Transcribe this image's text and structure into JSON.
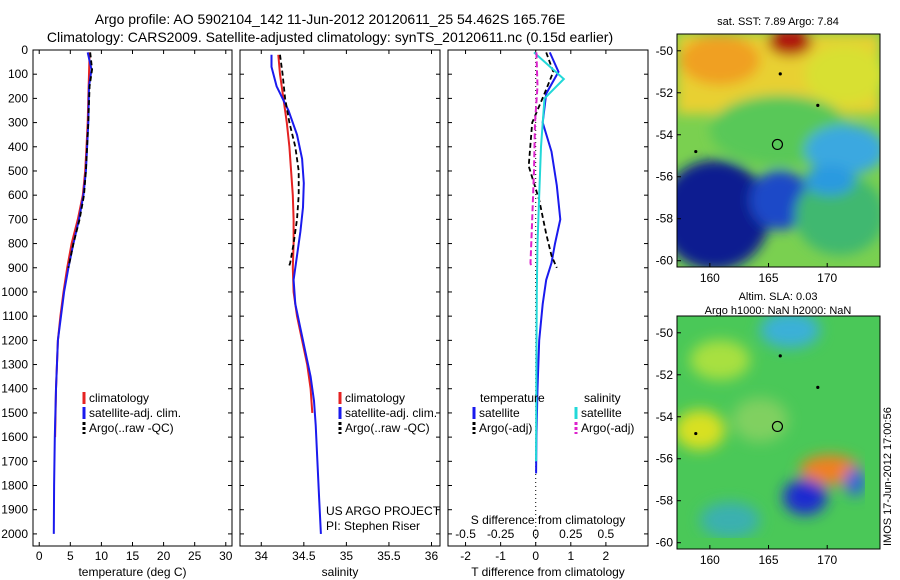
{
  "header": {
    "title_line1": "Argo profile: AO 5902104_142 11-Jun-2012 20120611_25 54.462S 165.76E",
    "title_line2": "Climatology: CARS2009. Satellite-adjusted climatology: synTS_20120611.nc (0.15d earlier)"
  },
  "colors": {
    "climatology": "#e52222",
    "satellite": "#1a1aee",
    "argo": "#000000",
    "satellite_salinity": "#22d8d8",
    "argo_salinity": "#dd22cc"
  },
  "chart_data": [
    {
      "type": "line",
      "name_panel": "temperature",
      "xlabel": "temperature (deg C)",
      "xlim": [
        -1,
        31
      ],
      "xticks": [
        0,
        5,
        10,
        15,
        20,
        25,
        30
      ],
      "ylim": [
        0,
        2050
      ],
      "yticks": [
        0,
        100,
        200,
        300,
        400,
        500,
        600,
        700,
        800,
        900,
        1000,
        1100,
        1200,
        1300,
        1400,
        1500,
        1600,
        1700,
        1800,
        1900,
        2000
      ],
      "legend": [
        "climatology",
        "satellite-adj. clim.",
        "Argo(..raw -QC)"
      ],
      "series": [
        {
          "name": "climatology",
          "x": [
            8.1,
            8.0,
            7.9,
            7.8,
            7.6,
            7.4,
            7.0,
            6.2,
            5.2,
            4.5,
            3.9,
            3.4,
            3.0,
            2.7,
            2.55
          ],
          "y": [
            10,
            100,
            200,
            300,
            400,
            500,
            600,
            700,
            800,
            900,
            1000,
            1100,
            1200,
            1400,
            1600
          ]
        },
        {
          "name": "satellite-adj. clim.",
          "x": [
            7.8,
            8.4,
            8.0,
            7.9,
            7.7,
            7.5,
            7.1,
            6.4,
            5.5,
            4.7,
            4.0,
            3.5,
            3.0,
            2.7,
            2.5,
            2.4,
            2.35
          ],
          "y": [
            10,
            80,
            150,
            300,
            400,
            500,
            600,
            700,
            800,
            900,
            1000,
            1100,
            1200,
            1400,
            1600,
            1800,
            2000
          ]
        },
        {
          "name": "Argo(..raw -QC)",
          "x": [
            8.2,
            8.5,
            8.1,
            7.9,
            7.7,
            7.5,
            7.2,
            6.5,
            5.5,
            4.7
          ],
          "y": [
            10,
            80,
            150,
            300,
            400,
            500,
            600,
            700,
            800,
            900
          ]
        }
      ]
    },
    {
      "type": "line",
      "name_panel": "salinity",
      "xlabel": "salinity",
      "xlim": [
        33.75,
        36.1
      ],
      "xticks": [
        34,
        34.5,
        35,
        35.5,
        36
      ],
      "ylim": [
        0,
        2050
      ],
      "legend": [
        "climatology",
        "satellite-adj. clim.",
        "Argo(..raw -QC)"
      ],
      "annotation": [
        "US ARGO PROJECT",
        "PI: Stephen Riser"
      ],
      "series": [
        {
          "name": "climatology",
          "x": [
            34.2,
            34.22,
            34.26,
            34.3,
            34.33,
            34.35,
            34.37,
            34.38,
            34.38,
            34.37,
            34.38,
            34.42,
            34.48,
            34.54,
            34.58,
            34.6
          ],
          "y": [
            20,
            100,
            200,
            300,
            400,
            500,
            600,
            700,
            800,
            900,
            1000,
            1100,
            1200,
            1300,
            1400,
            1500
          ]
        },
        {
          "name": "satellite-adj. clim.",
          "x": [
            34.12,
            34.12,
            34.18,
            34.32,
            34.42,
            34.48,
            34.5,
            34.49,
            34.46,
            34.42,
            34.38,
            34.4,
            34.46,
            34.52,
            34.58,
            34.62,
            34.64,
            34.66,
            34.68,
            34.7
          ],
          "y": [
            20,
            70,
            150,
            250,
            350,
            450,
            550,
            650,
            750,
            850,
            950,
            1050,
            1150,
            1250,
            1350,
            1450,
            1550,
            1700,
            1850,
            2000
          ]
        },
        {
          "name": "Argo(..raw -QC)",
          "x": [
            34.22,
            34.25,
            34.28,
            34.33,
            34.4,
            34.44,
            34.44,
            34.42,
            34.38,
            34.34,
            34.32
          ],
          "y": [
            20,
            100,
            200,
            300,
            400,
            500,
            600,
            700,
            800,
            880,
            900
          ]
        }
      ]
    },
    {
      "type": "line",
      "name_panel": "differences",
      "xlabel_top": "S difference from climatology",
      "xlabel": "T difference from climatology",
      "xlim": [
        -2.5,
        3.2
      ],
      "xticks_bottom": [
        -2,
        -1,
        0,
        1,
        2
      ],
      "xticks_top": [
        -0.5,
        -0.25,
        0,
        0.25,
        0.5
      ],
      "ylim": [
        0,
        2050
      ],
      "legend_temperature": [
        "satellite",
        "Argo(-adj)"
      ],
      "legend_salinity": [
        "satellite",
        "Argo(-adj)"
      ],
      "legend_headers": [
        "temperature",
        "salinity"
      ],
      "series": [
        {
          "name": "temperature satellite",
          "x": [
            0.4,
            0.65,
            0.3,
            0.2,
            0.45,
            0.6,
            0.7,
            0.55,
            0.45,
            0.3,
            0.2,
            0.1,
            0.05,
            0.02,
            0.01
          ],
          "y": [
            10,
            90,
            180,
            300,
            420,
            560,
            700,
            800,
            880,
            950,
            1050,
            1200,
            1400,
            1600,
            1750
          ]
        },
        {
          "name": "temperature Argo(-adj)",
          "x": [
            0.3,
            0.5,
            0.25,
            -0.1,
            -0.2,
            0.1,
            0.3,
            0.45,
            0.6
          ],
          "y": [
            10,
            90,
            180,
            300,
            480,
            620,
            760,
            850,
            900
          ]
        },
        {
          "name": "salinity satellite",
          "x": [
            -0.05,
            0.8,
            0.25,
            0.15,
            0.1,
            0.05,
            0.03,
            0.02,
            0.01
          ],
          "y": [
            10,
            120,
            200,
            400,
            600,
            800,
            1000,
            1300,
            1700
          ]
        },
        {
          "name": "salinity Argo(-adj)",
          "x": [
            0.02,
            0.05,
            -0.02,
            -0.05,
            -0.1,
            -0.15,
            -0.12
          ],
          "y": [
            10,
            150,
            300,
            500,
            700,
            880,
            900
          ]
        }
      ]
    },
    {
      "type": "heatmap",
      "title": "sat. SST: 7.89 Argo: 7.84",
      "xticks": [
        160,
        165,
        170
      ],
      "yticks": [
        -50,
        -52,
        -54,
        -56,
        -58,
        -60
      ],
      "xlim": [
        157.2,
        174.5
      ],
      "ylim": [
        -60.3,
        -49.2
      ]
    },
    {
      "type": "heatmap",
      "title_line1": "Altim. SLA: 0.03",
      "title_line2": "Argo h1000: NaN h2000: NaN",
      "xticks": [
        160,
        165,
        170
      ],
      "yticks": [
        -50,
        -52,
        -54,
        -56,
        -58,
        -60
      ],
      "xlim": [
        157.2,
        174.5
      ],
      "ylim": [
        -60.3,
        -49.2
      ]
    }
  ],
  "footer": {
    "stamp": "IMOS 17-Jun-2012 17:00:56"
  }
}
